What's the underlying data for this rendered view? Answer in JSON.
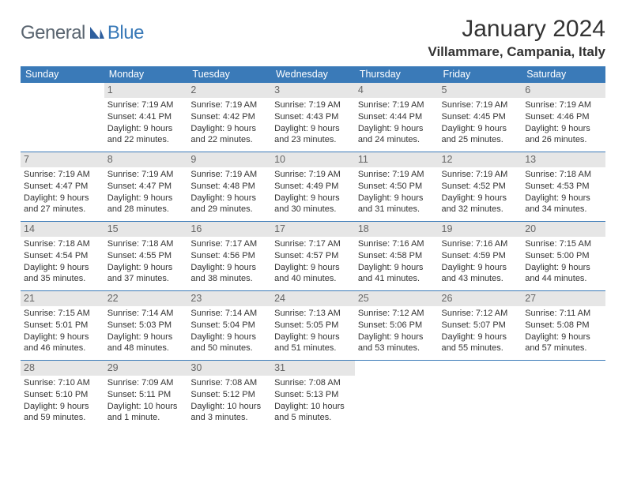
{
  "logo": {
    "text1": "General",
    "text2": "Blue"
  },
  "title": "January 2024",
  "subtitle": "Villammare, Campania, Italy",
  "colors": {
    "accent": "#3a7ab8",
    "header_bg": "#3a7ab8",
    "header_fg": "#ffffff",
    "daynum_bg": "#e6e6e6",
    "daynum_fg": "#666666",
    "text": "#333333",
    "background": "#ffffff"
  },
  "calendar": {
    "day_headers": [
      "Sunday",
      "Monday",
      "Tuesday",
      "Wednesday",
      "Thursday",
      "Friday",
      "Saturday"
    ],
    "weeks": [
      [
        null,
        {
          "n": "1",
          "sunrise": "Sunrise: 7:19 AM",
          "sunset": "Sunset: 4:41 PM",
          "d1": "Daylight: 9 hours",
          "d2": "and 22 minutes."
        },
        {
          "n": "2",
          "sunrise": "Sunrise: 7:19 AM",
          "sunset": "Sunset: 4:42 PM",
          "d1": "Daylight: 9 hours",
          "d2": "and 22 minutes."
        },
        {
          "n": "3",
          "sunrise": "Sunrise: 7:19 AM",
          "sunset": "Sunset: 4:43 PM",
          "d1": "Daylight: 9 hours",
          "d2": "and 23 minutes."
        },
        {
          "n": "4",
          "sunrise": "Sunrise: 7:19 AM",
          "sunset": "Sunset: 4:44 PM",
          "d1": "Daylight: 9 hours",
          "d2": "and 24 minutes."
        },
        {
          "n": "5",
          "sunrise": "Sunrise: 7:19 AM",
          "sunset": "Sunset: 4:45 PM",
          "d1": "Daylight: 9 hours",
          "d2": "and 25 minutes."
        },
        {
          "n": "6",
          "sunrise": "Sunrise: 7:19 AM",
          "sunset": "Sunset: 4:46 PM",
          "d1": "Daylight: 9 hours",
          "d2": "and 26 minutes."
        }
      ],
      [
        {
          "n": "7",
          "sunrise": "Sunrise: 7:19 AM",
          "sunset": "Sunset: 4:47 PM",
          "d1": "Daylight: 9 hours",
          "d2": "and 27 minutes."
        },
        {
          "n": "8",
          "sunrise": "Sunrise: 7:19 AM",
          "sunset": "Sunset: 4:47 PM",
          "d1": "Daylight: 9 hours",
          "d2": "and 28 minutes."
        },
        {
          "n": "9",
          "sunrise": "Sunrise: 7:19 AM",
          "sunset": "Sunset: 4:48 PM",
          "d1": "Daylight: 9 hours",
          "d2": "and 29 minutes."
        },
        {
          "n": "10",
          "sunrise": "Sunrise: 7:19 AM",
          "sunset": "Sunset: 4:49 PM",
          "d1": "Daylight: 9 hours",
          "d2": "and 30 minutes."
        },
        {
          "n": "11",
          "sunrise": "Sunrise: 7:19 AM",
          "sunset": "Sunset: 4:50 PM",
          "d1": "Daylight: 9 hours",
          "d2": "and 31 minutes."
        },
        {
          "n": "12",
          "sunrise": "Sunrise: 7:19 AM",
          "sunset": "Sunset: 4:52 PM",
          "d1": "Daylight: 9 hours",
          "d2": "and 32 minutes."
        },
        {
          "n": "13",
          "sunrise": "Sunrise: 7:18 AM",
          "sunset": "Sunset: 4:53 PM",
          "d1": "Daylight: 9 hours",
          "d2": "and 34 minutes."
        }
      ],
      [
        {
          "n": "14",
          "sunrise": "Sunrise: 7:18 AM",
          "sunset": "Sunset: 4:54 PM",
          "d1": "Daylight: 9 hours",
          "d2": "and 35 minutes."
        },
        {
          "n": "15",
          "sunrise": "Sunrise: 7:18 AM",
          "sunset": "Sunset: 4:55 PM",
          "d1": "Daylight: 9 hours",
          "d2": "and 37 minutes."
        },
        {
          "n": "16",
          "sunrise": "Sunrise: 7:17 AM",
          "sunset": "Sunset: 4:56 PM",
          "d1": "Daylight: 9 hours",
          "d2": "and 38 minutes."
        },
        {
          "n": "17",
          "sunrise": "Sunrise: 7:17 AM",
          "sunset": "Sunset: 4:57 PM",
          "d1": "Daylight: 9 hours",
          "d2": "and 40 minutes."
        },
        {
          "n": "18",
          "sunrise": "Sunrise: 7:16 AM",
          "sunset": "Sunset: 4:58 PM",
          "d1": "Daylight: 9 hours",
          "d2": "and 41 minutes."
        },
        {
          "n": "19",
          "sunrise": "Sunrise: 7:16 AM",
          "sunset": "Sunset: 4:59 PM",
          "d1": "Daylight: 9 hours",
          "d2": "and 43 minutes."
        },
        {
          "n": "20",
          "sunrise": "Sunrise: 7:15 AM",
          "sunset": "Sunset: 5:00 PM",
          "d1": "Daylight: 9 hours",
          "d2": "and 44 minutes."
        }
      ],
      [
        {
          "n": "21",
          "sunrise": "Sunrise: 7:15 AM",
          "sunset": "Sunset: 5:01 PM",
          "d1": "Daylight: 9 hours",
          "d2": "and 46 minutes."
        },
        {
          "n": "22",
          "sunrise": "Sunrise: 7:14 AM",
          "sunset": "Sunset: 5:03 PM",
          "d1": "Daylight: 9 hours",
          "d2": "and 48 minutes."
        },
        {
          "n": "23",
          "sunrise": "Sunrise: 7:14 AM",
          "sunset": "Sunset: 5:04 PM",
          "d1": "Daylight: 9 hours",
          "d2": "and 50 minutes."
        },
        {
          "n": "24",
          "sunrise": "Sunrise: 7:13 AM",
          "sunset": "Sunset: 5:05 PM",
          "d1": "Daylight: 9 hours",
          "d2": "and 51 minutes."
        },
        {
          "n": "25",
          "sunrise": "Sunrise: 7:12 AM",
          "sunset": "Sunset: 5:06 PM",
          "d1": "Daylight: 9 hours",
          "d2": "and 53 minutes."
        },
        {
          "n": "26",
          "sunrise": "Sunrise: 7:12 AM",
          "sunset": "Sunset: 5:07 PM",
          "d1": "Daylight: 9 hours",
          "d2": "and 55 minutes."
        },
        {
          "n": "27",
          "sunrise": "Sunrise: 7:11 AM",
          "sunset": "Sunset: 5:08 PM",
          "d1": "Daylight: 9 hours",
          "d2": "and 57 minutes."
        }
      ],
      [
        {
          "n": "28",
          "sunrise": "Sunrise: 7:10 AM",
          "sunset": "Sunset: 5:10 PM",
          "d1": "Daylight: 9 hours",
          "d2": "and 59 minutes."
        },
        {
          "n": "29",
          "sunrise": "Sunrise: 7:09 AM",
          "sunset": "Sunset: 5:11 PM",
          "d1": "Daylight: 10 hours",
          "d2": "and 1 minute."
        },
        {
          "n": "30",
          "sunrise": "Sunrise: 7:08 AM",
          "sunset": "Sunset: 5:12 PM",
          "d1": "Daylight: 10 hours",
          "d2": "and 3 minutes."
        },
        {
          "n": "31",
          "sunrise": "Sunrise: 7:08 AM",
          "sunset": "Sunset: 5:13 PM",
          "d1": "Daylight: 10 hours",
          "d2": "and 5 minutes."
        },
        null,
        null,
        null
      ]
    ]
  }
}
